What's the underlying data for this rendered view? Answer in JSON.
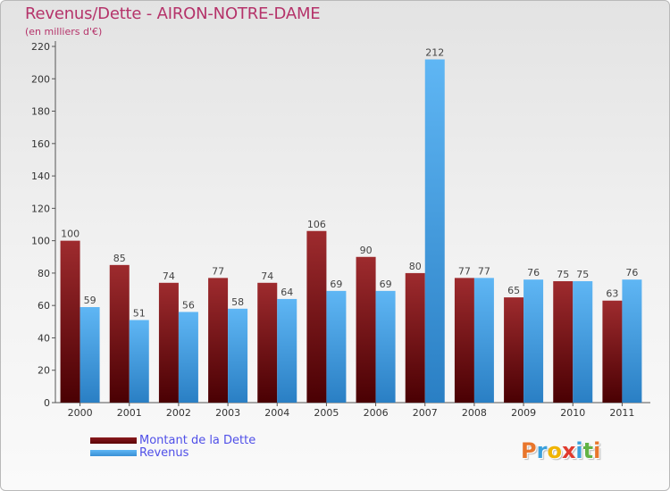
{
  "chart_data": {
    "type": "bar",
    "title": "Revenus/Dette - AIRON-NOTRE-DAME",
    "subtitle": "(en milliers d'€)",
    "categories": [
      "2000",
      "2001",
      "2002",
      "2003",
      "2004",
      "2005",
      "2006",
      "2007",
      "2008",
      "2009",
      "2010",
      "2011"
    ],
    "series": [
      {
        "name": "Montant de la Dette",
        "color": "#7a0f12",
        "values": [
          100,
          85,
          74,
          77,
          74,
          106,
          90,
          80,
          77,
          65,
          75,
          63
        ]
      },
      {
        "name": "Revenus",
        "color": "#4aa3e6",
        "values": [
          59,
          51,
          56,
          58,
          64,
          69,
          69,
          212,
          77,
          76,
          75,
          76
        ]
      }
    ],
    "yticks": [
      0,
      20,
      40,
      60,
      80,
      100,
      120,
      140,
      160,
      180,
      200,
      220
    ],
    "ylim": [
      0,
      220
    ],
    "xlabel": "",
    "ylabel": "",
    "legend_position": "bottom-left"
  },
  "logo": {
    "letters": [
      {
        "ch": "P",
        "color": "#e8762c"
      },
      {
        "ch": "r",
        "color": "#3aa0dc"
      },
      {
        "ch": "o",
        "color": "#f0b400"
      },
      {
        "ch": "x",
        "color": "#e03b2e"
      },
      {
        "ch": "i",
        "color": "#3aa0dc"
      },
      {
        "ch": "t",
        "color": "#62b345"
      },
      {
        "ch": "i",
        "color": "#e8762c"
      }
    ]
  }
}
